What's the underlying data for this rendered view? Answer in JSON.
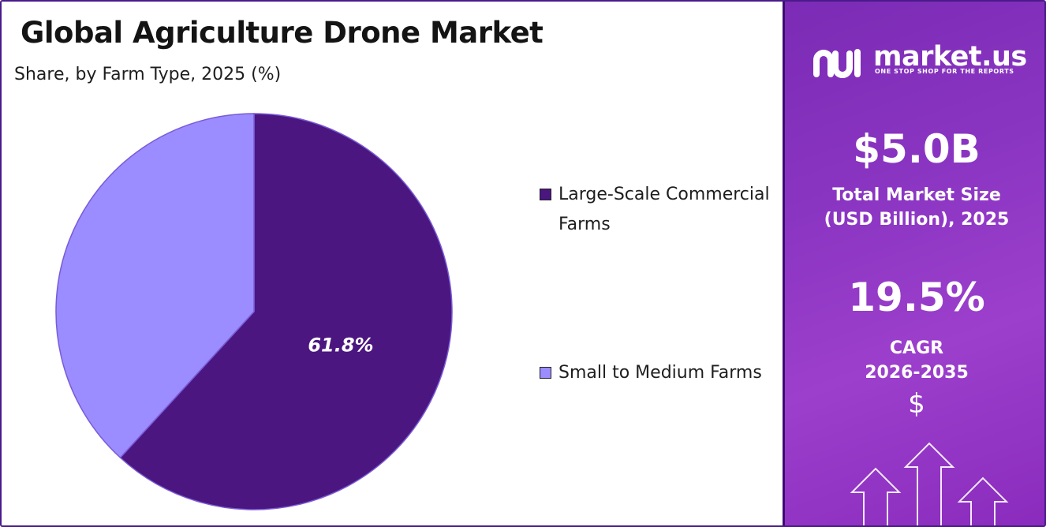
{
  "chart_data": {
    "type": "pie",
    "title": "Global Agriculture Drone Market",
    "subtitle": "Share, by Farm Type, 2025 (%)",
    "categories": [
      "Large-Scale Commercial Farms",
      "Small to Medium Farms"
    ],
    "values": [
      61.8,
      38.2
    ],
    "colors": [
      "#4b1680",
      "#9b8cff"
    ],
    "data_labels": [
      "61.8%",
      ""
    ],
    "legend_position": "right"
  },
  "legend": {
    "items": [
      {
        "label": "Large-Scale Commercial Farms",
        "color": "#4b1680"
      },
      {
        "label": "Small to Medium Farms",
        "color": "#9b8cff"
      }
    ]
  },
  "sidebar": {
    "logo_text": "market.us",
    "logo_tagline": "ONE STOP SHOP FOR THE REPORTS",
    "market_size_value": "$5.0B",
    "market_size_label_line1": "Total Market Size",
    "market_size_label_line2": "(USD Billion), 2025",
    "cagr_value": "19.5%",
    "cagr_label_line1": "CAGR",
    "cagr_label_line2": "2026-2035",
    "dollar_icon": "$",
    "icons": [
      "dollar-icon",
      "growth-arrows-icon"
    ],
    "accent_color": "#8a35c2"
  }
}
